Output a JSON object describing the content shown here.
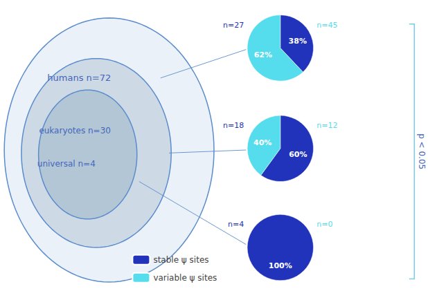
{
  "chart_data": {
    "type": "pie",
    "categories": [
      "stable ψ sites",
      "variable ψ sites"
    ],
    "colors": [
      "#2233bb",
      "#55ddee"
    ],
    "legend": "lower left",
    "data_labels": true,
    "annotations": [
      "p < 0.05"
    ],
    "series": [
      {
        "name": "humans n=72",
        "values": [
          38,
          62
        ],
        "value_labels": [
          "38%",
          "62%"
        ],
        "annotations": [
          "n=27",
          "n=45"
        ]
      },
      {
        "name": "eukaryotes n=30",
        "values": [
          60,
          40
        ],
        "value_labels": [
          "60%",
          "40%"
        ],
        "annotations": [
          "n=18",
          "n=12"
        ]
      },
      {
        "name": "universal n=4",
        "values": [
          100,
          null
        ],
        "value_labels": [
          "100%",
          null
        ],
        "annotations": [
          "n=4",
          "n=0"
        ]
      }
    ]
  }
}
